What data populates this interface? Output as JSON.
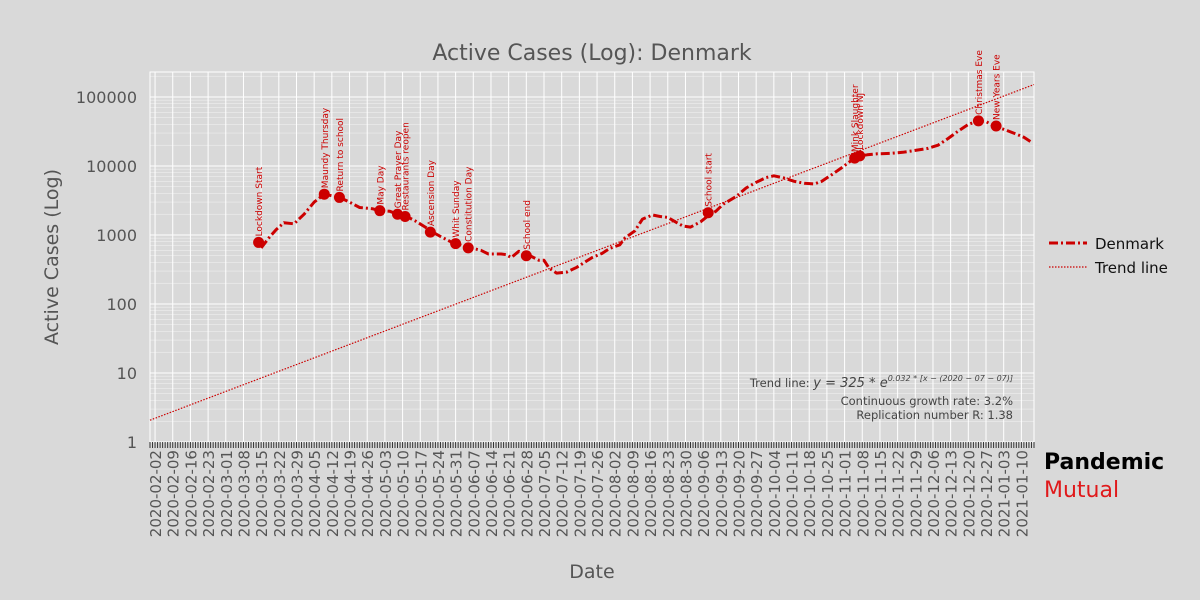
{
  "chart_data": {
    "type": "line",
    "title": "Active Cases (Log): Denmark",
    "xlabel": "Date",
    "ylabel": "Active Cases (Log)",
    "yscale": "log",
    "ylim": [
      1,
      230000
    ],
    "xlim": [
      "2020-01-31",
      "2021-01-15"
    ],
    "grid": true,
    "legend_position": "right",
    "y_ticks": [
      {
        "value": 1,
        "label": "1"
      },
      {
        "value": 10,
        "label": "10"
      },
      {
        "value": 100,
        "label": "100"
      },
      {
        "value": 1000,
        "label": "1000"
      },
      {
        "value": 10000,
        "label": "10000"
      },
      {
        "value": 100000,
        "label": "100000"
      }
    ],
    "x_tick_labels": [
      "2020-02-02",
      "2020-02-09",
      "2020-02-16",
      "2020-02-23",
      "2020-03-01",
      "2020-03-08",
      "2020-03-15",
      "2020-03-22",
      "2020-03-29",
      "2020-04-05",
      "2020-04-12",
      "2020-04-19",
      "2020-04-26",
      "2020-05-03",
      "2020-05-10",
      "2020-05-17",
      "2020-05-24",
      "2020-05-31",
      "2020-06-07",
      "2020-06-14",
      "2020-06-21",
      "2020-06-28",
      "2020-07-05",
      "2020-07-12",
      "2020-07-19",
      "2020-07-26",
      "2020-08-02",
      "2020-08-09",
      "2020-08-16",
      "2020-08-23",
      "2020-08-30",
      "2020-09-06",
      "2020-09-13",
      "2020-09-20",
      "2020-09-27",
      "2020-10-04",
      "2020-10-11",
      "2020-10-18",
      "2020-10-25",
      "2020-11-01",
      "2020-11-08",
      "2020-11-15",
      "2020-11-22",
      "2020-11-29",
      "2020-12-06",
      "2020-12-13",
      "2020-12-20",
      "2020-12-27",
      "2021-01-03",
      "2021-01-10"
    ],
    "series": [
      {
        "name": "Denmark",
        "color": "#cc0000",
        "style": "dash-dot",
        "points": [
          [
            "2020-03-15",
            650
          ],
          [
            "2020-03-18",
            900
          ],
          [
            "2020-03-21",
            1200
          ],
          [
            "2020-03-24",
            1500
          ],
          [
            "2020-03-28",
            1450
          ],
          [
            "2020-04-01",
            2000
          ],
          [
            "2020-04-05",
            3000
          ],
          [
            "2020-04-09",
            3900
          ],
          [
            "2020-04-12",
            3700
          ],
          [
            "2020-04-15",
            3500
          ],
          [
            "2020-04-19",
            3000
          ],
          [
            "2020-04-23",
            2500
          ],
          [
            "2020-04-28",
            2400
          ],
          [
            "2020-05-01",
            2250
          ],
          [
            "2020-05-05",
            2200
          ],
          [
            "2020-05-08",
            2000
          ],
          [
            "2020-05-11",
            1900
          ],
          [
            "2020-05-15",
            1600
          ],
          [
            "2020-05-19",
            1300
          ],
          [
            "2020-05-21",
            1150
          ],
          [
            "2020-05-25",
            950
          ],
          [
            "2020-05-29",
            800
          ],
          [
            "2020-05-31",
            750
          ],
          [
            "2020-06-03",
            700
          ],
          [
            "2020-06-06",
            650
          ],
          [
            "2020-06-10",
            600
          ],
          [
            "2020-06-13",
            530
          ],
          [
            "2020-06-18",
            530
          ],
          [
            "2020-06-20",
            520
          ],
          [
            "2020-06-22",
            470
          ],
          [
            "2020-06-25",
            580
          ],
          [
            "2020-06-28",
            520
          ],
          [
            "2020-06-30",
            490
          ],
          [
            "2020-07-03",
            430
          ],
          [
            "2020-07-05",
            430
          ],
          [
            "2020-07-07",
            330
          ],
          [
            "2020-07-10",
            280
          ],
          [
            "2020-07-14",
            290
          ],
          [
            "2020-07-18",
            340
          ],
          [
            "2020-07-20",
            380
          ],
          [
            "2020-07-24",
            470
          ],
          [
            "2020-07-28",
            540
          ],
          [
            "2020-07-31",
            640
          ],
          [
            "2020-08-04",
            720
          ],
          [
            "2020-08-06",
            900
          ],
          [
            "2020-08-10",
            1150
          ],
          [
            "2020-08-13",
            1700
          ],
          [
            "2020-08-17",
            1950
          ],
          [
            "2020-08-20",
            1850
          ],
          [
            "2020-08-23",
            1800
          ],
          [
            "2020-08-26",
            1550
          ],
          [
            "2020-08-29",
            1350
          ],
          [
            "2020-09-01",
            1300
          ],
          [
            "2020-09-05",
            1550
          ],
          [
            "2020-09-08",
            1900
          ],
          [
            "2020-09-11",
            2200
          ],
          [
            "2020-09-14",
            2800
          ],
          [
            "2020-09-19",
            3600
          ],
          [
            "2020-09-23",
            4800
          ],
          [
            "2020-09-27",
            5800
          ],
          [
            "2020-10-01",
            6800
          ],
          [
            "2020-10-04",
            7200
          ],
          [
            "2020-10-08",
            6700
          ],
          [
            "2020-10-12",
            6000
          ],
          [
            "2020-10-16",
            5600
          ],
          [
            "2020-10-20",
            5500
          ],
          [
            "2020-10-23",
            6000
          ],
          [
            "2020-10-27",
            7500
          ],
          [
            "2020-10-31",
            9500
          ],
          [
            "2020-11-03",
            11500
          ],
          [
            "2020-11-05",
            13000
          ],
          [
            "2020-11-07",
            14000
          ],
          [
            "2020-11-10",
            14500
          ],
          [
            "2020-11-14",
            15000
          ],
          [
            "2020-11-19",
            15200
          ],
          [
            "2020-11-24",
            15800
          ],
          [
            "2020-11-29",
            16800
          ],
          [
            "2020-12-04",
            18000
          ],
          [
            "2020-12-08",
            20000
          ],
          [
            "2020-12-12",
            25000
          ],
          [
            "2020-12-16",
            32000
          ],
          [
            "2020-12-20",
            40000
          ],
          [
            "2020-12-24",
            45000
          ],
          [
            "2020-12-27",
            44000
          ],
          [
            "2020-12-29",
            40000
          ],
          [
            "2021-01-01",
            36000
          ],
          [
            "2021-01-04",
            33000
          ],
          [
            "2021-01-08",
            29000
          ],
          [
            "2021-01-11",
            26000
          ],
          [
            "2021-01-14",
            22000
          ]
        ]
      },
      {
        "name": "Trend line",
        "color": "#cc0000",
        "style": "dotted",
        "growth_rate_per_day": 0.032,
        "reference_date": "2020-07-07",
        "reference_value": 325,
        "range": [
          "2020-01-31",
          "2021-01-15"
        ]
      }
    ],
    "events": [
      {
        "date": "2020-03-14",
        "label": "Lockdown Start",
        "value": 780
      },
      {
        "date": "2020-04-09",
        "label": "Maundy Thursday",
        "value": 3900
      },
      {
        "date": "2020-04-15",
        "label": "Return to school",
        "value": 3500
      },
      {
        "date": "2020-05-01",
        "label": "May Day",
        "value": 2250
      },
      {
        "date": "2020-05-08",
        "label": "Great Prayer Day",
        "value": 2000
      },
      {
        "date": "2020-05-11",
        "label": "Restaurants reopen",
        "value": 1850
      },
      {
        "date": "2020-05-21",
        "label": "Ascension Day",
        "value": 1100
      },
      {
        "date": "2020-05-31",
        "label": "Whit Sunday",
        "value": 750
      },
      {
        "date": "2020-06-05",
        "label": "Constitution Day",
        "value": 650
      },
      {
        "date": "2020-06-28",
        "label": "School end",
        "value": 500
      },
      {
        "date": "2020-09-08",
        "label": "School start",
        "value": 2100
      },
      {
        "date": "2020-11-05",
        "label": "Mink Slaughter",
        "value": 13000
      },
      {
        "date": "2020-11-07",
        "label": "Lockdown NJ",
        "value": 14000
      },
      {
        "date": "2020-12-24",
        "label": "Christmas Eve",
        "value": 45000
      },
      {
        "date": "2020-12-31",
        "label": "New Years Eve",
        "value": 38000
      }
    ],
    "annotation": {
      "trend_prefix": "Trend line: ",
      "trend_equation": "y = 325 * e",
      "trend_exponent": "0.032 * [x − (2020 − 07 − 07)]",
      "growth_rate": "Continuous growth rate: 3.2%",
      "replication": "Replication number R: 1.38"
    }
  },
  "brand": {
    "line1": "Pandemic",
    "line2": "Mutual",
    "line1_color": "#000000",
    "line2_color": "#e0191b"
  }
}
